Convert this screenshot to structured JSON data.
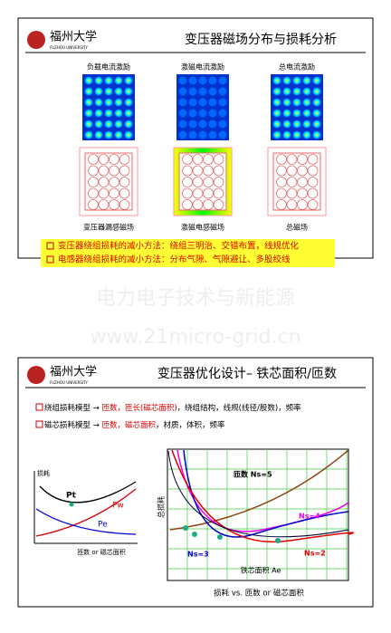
{
  "slides": [
    {
      "logo": {
        "name": "福州大学",
        "sub": "FUZHOU UNIVERSITY"
      },
      "title": "变压器磁场分布与损耗分析",
      "figures": [
        {
          "top_label": "负载电流激励",
          "bottom_label": "变压器漏感磁场"
        },
        {
          "top_label": "激磁电流激励",
          "bottom_label": "激磁电感磁场"
        },
        {
          "top_label": "总电流激励",
          "bottom_label": "总磁场"
        }
      ],
      "notes": [
        "变压器绕组损耗的减小方法：绕组三明治、交错布置，线规优化",
        "电感器绕组损耗的减小方法：分布气隙、气隙避让、多股绞线"
      ]
    },
    {
      "logo": {
        "name": "福州大学",
        "sub": "FUZHOU UNIVERSITY"
      },
      "title": "变压器优化设计– 铁芯面积/匝数",
      "bullets": [
        [
          "绕组损耗模型 → ",
          "匝数，匝长(磁芯面积)",
          "，绕组结构，线规(线径/股数)，频率"
        ],
        [
          "磁芯损耗模型 → ",
          "匝数，磁芯面积",
          "，材质，体积，频率"
        ]
      ],
      "small_chart": {
        "y_label": "损耗",
        "x_label": "匝数 or 磁芯面积",
        "curves": [
          "Pt",
          "Pw",
          "Pe"
        ]
      },
      "big_chart": {
        "y_label": "总损耗",
        "x_label": "铁芯面积 Ae",
        "curve_labels": [
          "匝数 Ns=5",
          "Ns=4",
          "Ns=3",
          "Ns=2"
        ]
      },
      "caption": "损耗 vs. 匝数 or 磁芯面积"
    }
  ],
  "watermark": [
    "电力电子技术与新能源",
    "www.21micro-grid.cn"
  ]
}
